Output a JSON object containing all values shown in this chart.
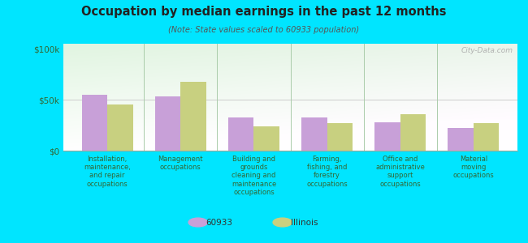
{
  "title": "Occupation by median earnings in the past 12 months",
  "subtitle": "(Note: State values scaled to 60933 population)",
  "categories": [
    "Installation,\nmaintenance,\nand repair\noccupations",
    "Management\noccupations",
    "Building and\ngrounds\ncleaning and\nmaintenance\noccupations",
    "Farming,\nfishing, and\nforestry\noccupations",
    "Office and\nadministrative\nsupport\noccupations",
    "Material\nmoving\noccupations"
  ],
  "values_60933": [
    55000,
    53000,
    33000,
    33000,
    28000,
    22000
  ],
  "values_illinois": [
    45000,
    68000,
    24000,
    27000,
    36000,
    27000
  ],
  "color_60933": "#c8a0d8",
  "color_illinois": "#c8d080",
  "background_color": "#00e5ff",
  "yticks": [
    0,
    50000,
    100000
  ],
  "ytick_labels": [
    "$0",
    "$50k",
    "$100k"
  ],
  "ylim": [
    0,
    105000
  ],
  "legend_60933": "60933",
  "legend_illinois": "Illinois",
  "watermark": "City-Data.com",
  "bar_width": 0.35,
  "separator_color": "#aaccaa",
  "grid_color": "#cccccc"
}
